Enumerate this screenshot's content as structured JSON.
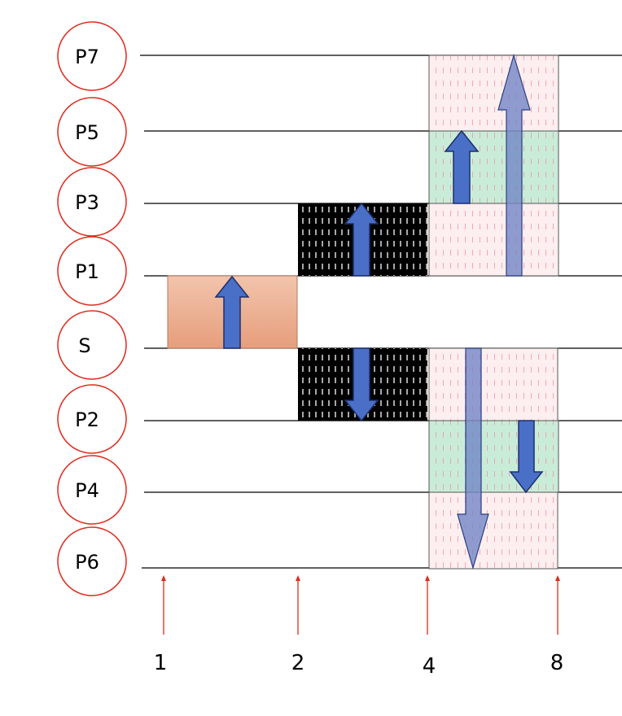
{
  "nodes": {
    "p7": "P7",
    "p5": "P5",
    "p3": "P3",
    "p1": "P1",
    "s": "S",
    "p2": "P2",
    "p4": "P4",
    "p6": "P6"
  },
  "steps": {
    "step1": "1",
    "step2": "2",
    "step4": "4",
    "step8": "8"
  },
  "colors": {
    "node_stroke": "#e02a1d",
    "line": "#000000",
    "arrow_fill": "#4a6fc7",
    "arrow_stroke": "#1c2f6b",
    "arrow_translucent": "#6f84c4",
    "block_source": "#eaa07e",
    "block_black": "#000000",
    "block_pink": "#fde8ea",
    "block_green": "#c7ead8",
    "tick_arrow": "#e02a1d"
  }
}
